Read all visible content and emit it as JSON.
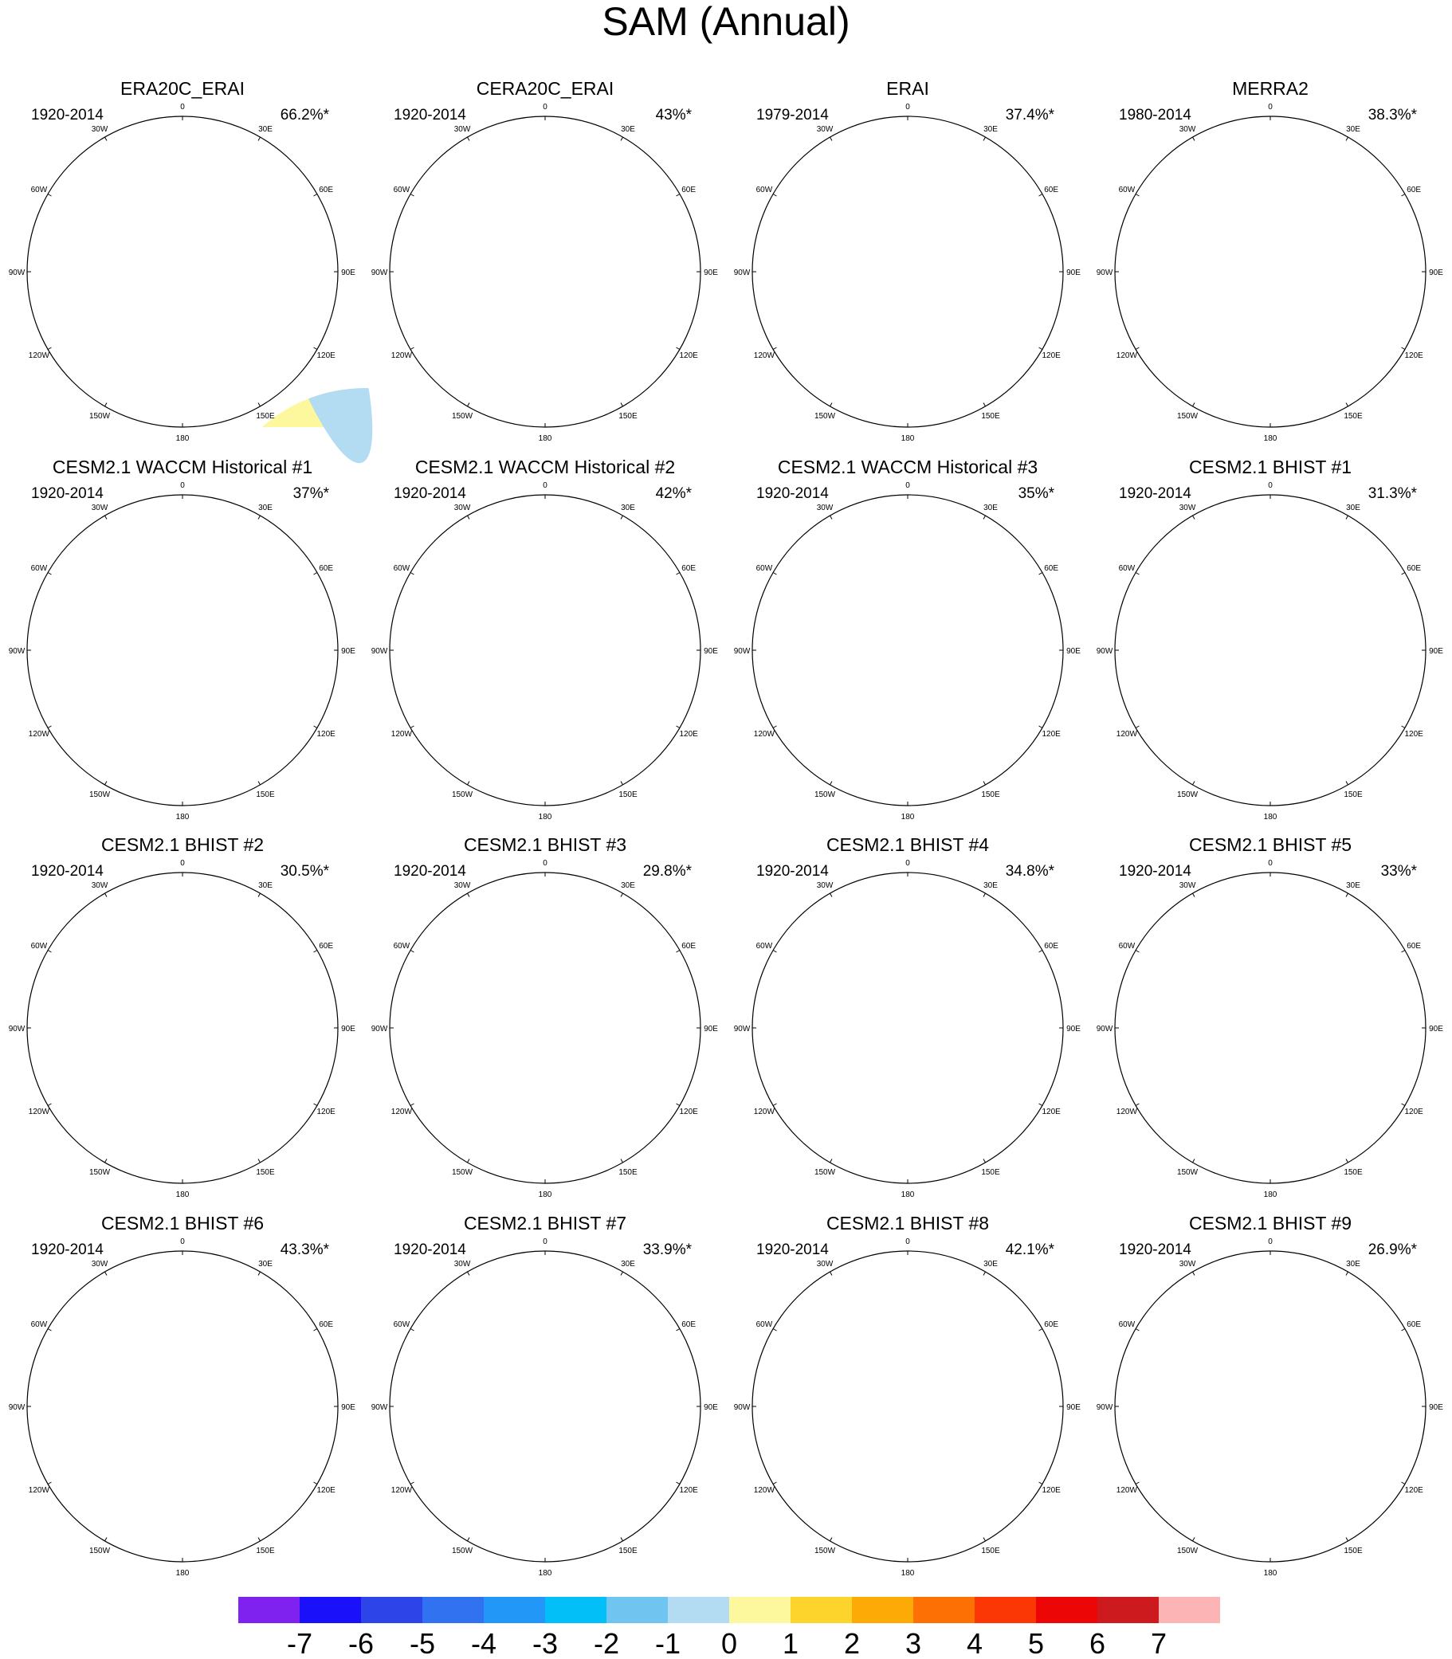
{
  "figure": {
    "title": "SAM (Annual)"
  },
  "palette": {
    "-7": "#7f22f0",
    "-6": "#1a10f9",
    "-5": "#2d45e8",
    "-4": "#3172f0",
    "-3": "#2397f8",
    "-2": "#03bff8",
    "-1": "#6fc5f0",
    "0": "#b3dbf2",
    "1": "#fdf79d",
    "2": "#fdd42b",
    "3": "#fdaa06",
    "4": "#fd7004",
    "5": "#fc3706",
    "6": "#ec0606",
    "7": "#cc1a1e",
    "8": "#fdb4b4"
  },
  "colorbar": {
    "labels": [
      "-7",
      "-6",
      "-5",
      "-4",
      "-3",
      "-2",
      "-1",
      "0",
      "1",
      "2",
      "3",
      "4",
      "5",
      "6",
      "7"
    ],
    "levels": [
      "-7",
      "-6",
      "-5",
      "-4",
      "-3",
      "-2",
      "-1",
      "0",
      "1",
      "2",
      "3",
      "4",
      "5",
      "6",
      "7",
      "8"
    ]
  },
  "longitude_labels": [
    "0",
    "30E",
    "60E",
    "90E",
    "120E",
    "150E",
    "180",
    "150W",
    "120W",
    "90W",
    "60W",
    "30W"
  ],
  "panels": [
    {
      "title": "ERA20C_ERAI",
      "period": "1920-2014",
      "variance": "66.2%*",
      "min_level": -4
    },
    {
      "title": "CERA20C_ERAI",
      "period": "1920-2014",
      "variance": "43%*",
      "min_level": -4
    },
    {
      "title": "ERAI",
      "period": "1979-2014",
      "variance": "37.4%*",
      "min_level": -2
    },
    {
      "title": "MERRA2",
      "period": "1980-2014",
      "variance": "38.3%*",
      "min_level": -3
    },
    {
      "title": "CESM2.1 WACCM Historical #1",
      "period": "1920-2014",
      "variance": "37%*",
      "min_level": -2
    },
    {
      "title": "CESM2.1 WACCM Historical #2",
      "period": "1920-2014",
      "variance": "42%*",
      "min_level": -2
    },
    {
      "title": "CESM2.1 WACCM Historical #3",
      "period": "1920-2014",
      "variance": "35%*",
      "min_level": -2
    },
    {
      "title": "CESM2.1 BHIST #1",
      "period": "1920-2014",
      "variance": "31.3%*",
      "min_level": -2
    },
    {
      "title": "CESM2.1 BHIST #2",
      "period": "1920-2014",
      "variance": "30.5%*",
      "min_level": -2
    },
    {
      "title": "CESM2.1 BHIST #3",
      "period": "1920-2014",
      "variance": "29.8%*",
      "min_level": -2
    },
    {
      "title": "CESM2.1 BHIST #4",
      "period": "1920-2014",
      "variance": "34.8%*",
      "min_level": -2
    },
    {
      "title": "CESM2.1 BHIST #5",
      "period": "1920-2014",
      "variance": "33%*",
      "min_level": -2
    },
    {
      "title": "CESM2.1 BHIST #6",
      "period": "1920-2014",
      "variance": "43.3%*",
      "min_level": -2
    },
    {
      "title": "CESM2.1 BHIST #7",
      "period": "1920-2014",
      "variance": "33.9%*",
      "min_level": -1
    },
    {
      "title": "CESM2.1 BHIST #8",
      "period": "1920-2014",
      "variance": "42.1%*",
      "min_level": -2
    },
    {
      "title": "CESM2.1 BHIST #9",
      "period": "1920-2014",
      "variance": "26.9%*",
      "min_level": -2
    }
  ]
}
